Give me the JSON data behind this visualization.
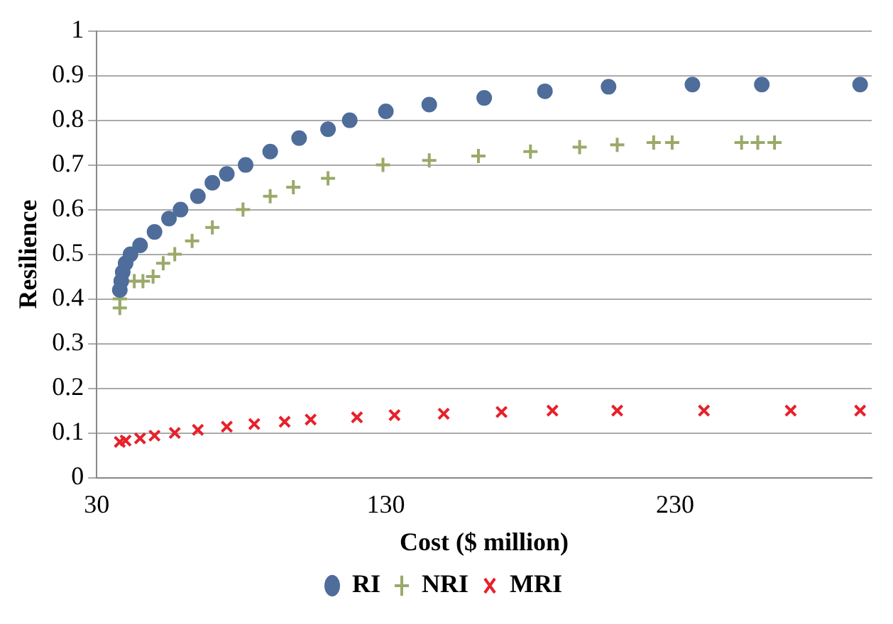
{
  "chart_data": {
    "type": "scatter",
    "xlabel": "Cost ($ million)",
    "ylabel": "Resilience",
    "xlim": [
      30,
      298
    ],
    "xticks": [
      30,
      130,
      230
    ],
    "ylim": [
      0,
      1
    ],
    "yticks": [
      0,
      0.1,
      0.2,
      0.3,
      0.4,
      0.5,
      0.6,
      0.7,
      0.8,
      0.9,
      1
    ],
    "grid": "y",
    "legend": "bottom",
    "series": [
      {
        "name": "RI",
        "color": "#4f6d9b",
        "marker": "circle",
        "x": [
          38,
          38.5,
          39,
          40,
          41.7,
          45,
          50,
          55,
          59,
          65,
          70,
          75,
          81.5,
          90,
          100,
          110,
          117.5,
          130,
          145,
          164,
          185,
          207,
          236,
          260,
          294
        ],
        "values": [
          0.42,
          0.44,
          0.46,
          0.48,
          0.5,
          0.52,
          0.55,
          0.58,
          0.6,
          0.63,
          0.66,
          0.68,
          0.7,
          0.73,
          0.76,
          0.78,
          0.8,
          0.82,
          0.835,
          0.85,
          0.865,
          0.875,
          0.88,
          0.88,
          0.88
        ]
      },
      {
        "name": "NRI",
        "color": "#9aa96a",
        "marker": "cross",
        "x": [
          38,
          38,
          43,
          46,
          49.5,
          53,
          57,
          63,
          70,
          80.6,
          90,
          98,
          110,
          129,
          145,
          162,
          180,
          197,
          210,
          222.6,
          229,
          253,
          258.6,
          264.4
        ],
        "values": [
          0.38,
          0.4,
          0.44,
          0.44,
          0.45,
          0.48,
          0.5,
          0.53,
          0.56,
          0.6,
          0.63,
          0.65,
          0.67,
          0.7,
          0.71,
          0.72,
          0.73,
          0.74,
          0.745,
          0.75,
          0.75,
          0.75,
          0.75,
          0.75
        ]
      },
      {
        "name": "MRI",
        "color": "#e8202a",
        "marker": "crossRot",
        "x": [
          38,
          40,
          45,
          50,
          57,
          65,
          75,
          84.5,
          95,
          104,
          120,
          133,
          150,
          170,
          187.6,
          210,
          240,
          270,
          294
        ],
        "values": [
          0.08,
          0.083,
          0.088,
          0.094,
          0.1,
          0.107,
          0.114,
          0.12,
          0.125,
          0.13,
          0.135,
          0.14,
          0.143,
          0.147,
          0.15,
          0.15,
          0.15,
          0.15,
          0.15
        ]
      }
    ]
  }
}
